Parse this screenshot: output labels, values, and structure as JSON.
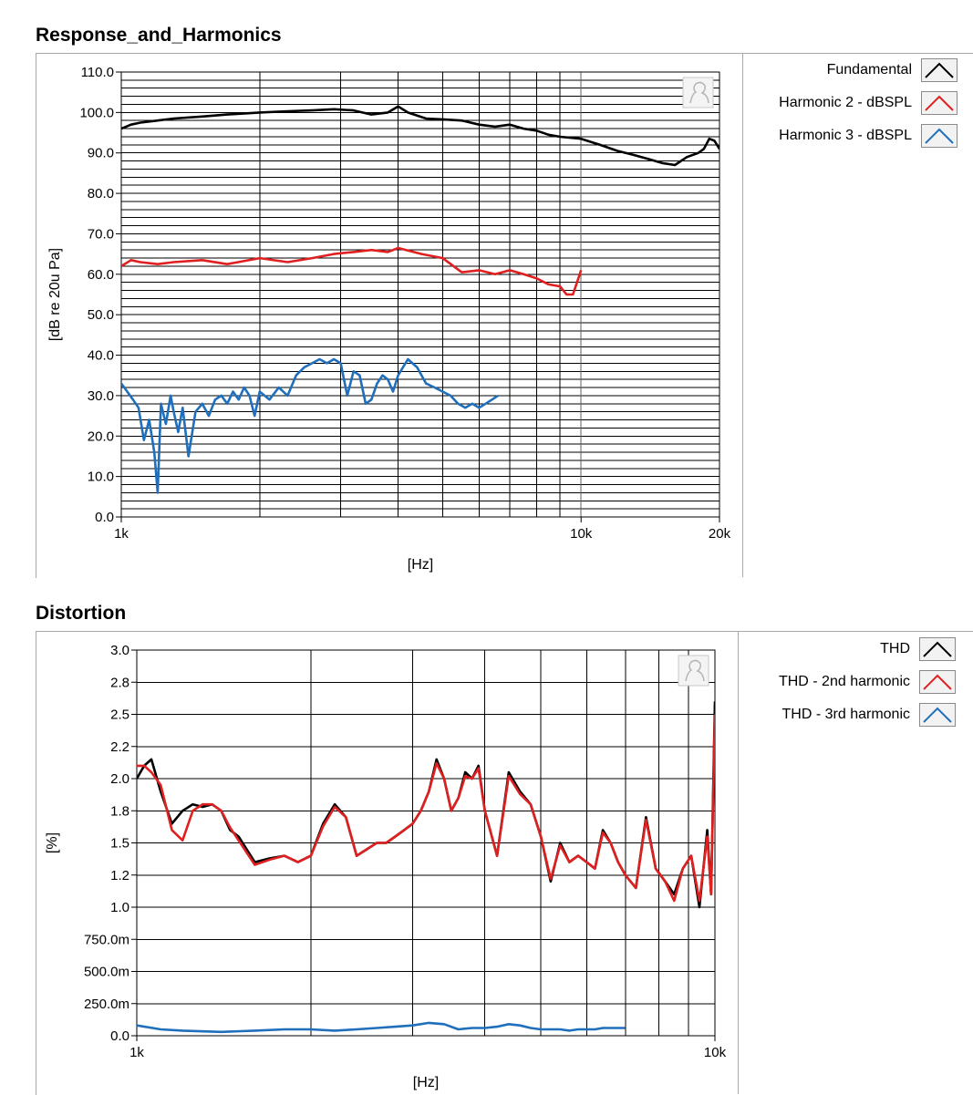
{
  "chart_data": [
    {
      "type": "line",
      "title": "Response_and_Harmonics",
      "xlabel": "[Hz]",
      "ylabel": "[dB re 20u Pa]",
      "xscale": "log",
      "xlim": [
        1000,
        20000
      ],
      "ylim": [
        0,
        110
      ],
      "grid": true,
      "legend": "right",
      "x_tick_labels": [
        {
          "v": 1000,
          "label": "1k"
        },
        {
          "v": 10000,
          "label": "10k"
        },
        {
          "v": 20000,
          "label": "20k"
        }
      ],
      "y_tick_labels": [
        "0.0",
        "10.0",
        "20.0",
        "30.0",
        "40.0",
        "50.0",
        "60.0",
        "70.0",
        "80.0",
        "90.0",
        "100.0",
        "110.0"
      ],
      "y_ticks": [
        0,
        10,
        20,
        30,
        40,
        50,
        60,
        70,
        80,
        90,
        100,
        110
      ],
      "series": [
        {
          "name": "Fundamental",
          "color": "#000000",
          "x": [
            1000,
            1050,
            1100,
            1200,
            1300,
            1500,
            1700,
            2000,
            2300,
            2600,
            2900,
            3200,
            3500,
            3800,
            4000,
            4200,
            4600,
            5000,
            5500,
            6000,
            6500,
            7000,
            7500,
            8000,
            8500,
            9000,
            10000,
            11000,
            12000,
            13000,
            14000,
            15000,
            16000,
            17000,
            18000,
            18500,
            19000,
            19500,
            20000
          ],
          "y": [
            96,
            97,
            97.5,
            98,
            98.5,
            99,
            99.5,
            100,
            100.3,
            100.5,
            100.8,
            100.5,
            99.5,
            100,
            101.5,
            100,
            98.5,
            98.3,
            98,
            97,
            96.5,
            97,
            96,
            95.5,
            94.5,
            94,
            93.5,
            92,
            90.5,
            89.5,
            88.5,
            87.5,
            87,
            89,
            90,
            91,
            93.5,
            93,
            91
          ]
        },
        {
          "name": "Harmonic 2 - dBSPL",
          "color": "#e02020",
          "x": [
            1000,
            1050,
            1100,
            1200,
            1300,
            1500,
            1700,
            2000,
            2300,
            2600,
            2900,
            3200,
            3500,
            3800,
            4000,
            4500,
            5000,
            5500,
            6000,
            6500,
            7000,
            7500,
            8000,
            8500,
            9000,
            9300,
            9600,
            10000
          ],
          "y": [
            62,
            63.5,
            63,
            62.5,
            63,
            63.5,
            62.5,
            64,
            63,
            64,
            65,
            65.5,
            66,
            65.5,
            66.5,
            65,
            64,
            60.5,
            61,
            60,
            61,
            60,
            59,
            57.5,
            57,
            55,
            55,
            61
          ]
        },
        {
          "name": "Harmonic 3 - dBSPL",
          "color": "#1f6fbd",
          "x": [
            1000,
            1030,
            1060,
            1090,
            1120,
            1150,
            1180,
            1200,
            1220,
            1250,
            1280,
            1300,
            1330,
            1360,
            1400,
            1450,
            1500,
            1550,
            1600,
            1650,
            1700,
            1750,
            1800,
            1850,
            1900,
            1950,
            2000,
            2100,
            2200,
            2300,
            2400,
            2500,
            2600,
            2700,
            2800,
            2900,
            3000,
            3100,
            3200,
            3300,
            3400,
            3500,
            3600,
            3700,
            3800,
            3900,
            4000,
            4200,
            4400,
            4600,
            4800,
            5000,
            5200,
            5400,
            5600,
            5800,
            6000,
            6200,
            6400,
            6600
          ],
          "y": [
            33,
            31,
            29,
            27,
            19,
            24,
            16,
            6,
            28,
            23,
            30,
            26,
            21,
            27,
            15,
            26,
            28,
            25,
            29,
            30,
            28,
            31,
            29,
            32,
            30,
            25,
            31,
            29,
            32,
            30,
            35,
            37,
            38,
            39,
            38,
            39,
            38,
            30,
            36,
            35,
            28,
            29,
            33,
            35,
            34,
            31,
            35,
            39,
            37,
            33,
            32,
            31,
            30,
            28,
            27,
            28,
            27,
            28,
            29,
            30
          ]
        }
      ]
    },
    {
      "type": "line",
      "title": "Distortion",
      "xlabel": "[Hz]",
      "ylabel": "[%]",
      "xscale": "log",
      "xlim": [
        1000,
        10000
      ],
      "ylim": [
        0,
        3.0
      ],
      "grid": true,
      "legend": "right",
      "x_tick_labels": [
        {
          "v": 1000,
          "label": "1k"
        },
        {
          "v": 10000,
          "label": "10k"
        }
      ],
      "y_tick_labels": [
        "0.0",
        "250.0m",
        "500.0m",
        "750.0m",
        "1.0",
        "1.2",
        "1.5",
        "1.8",
        "2.0",
        "2.2",
        "2.5",
        "2.8",
        "3.0"
      ],
      "y_ticks": [
        0,
        0.25,
        0.5,
        0.75,
        1.0,
        1.25,
        1.5,
        1.75,
        2.0,
        2.25,
        2.5,
        2.75,
        3.0
      ],
      "series": [
        {
          "name": "THD",
          "color": "#000000",
          "x": [
            1000,
            1030,
            1060,
            1100,
            1150,
            1200,
            1250,
            1300,
            1350,
            1400,
            1450,
            1500,
            1600,
            1700,
            1800,
            1900,
            2000,
            2100,
            2200,
            2300,
            2400,
            2500,
            2600,
            2700,
            2800,
            2900,
            3000,
            3100,
            3200,
            3300,
            3400,
            3500,
            3600,
            3700,
            3800,
            3900,
            4000,
            4200,
            4400,
            4600,
            4800,
            5000,
            5200,
            5400,
            5600,
            5800,
            6000,
            6200,
            6400,
            6600,
            6800,
            7000,
            7300,
            7600,
            7900,
            8200,
            8500,
            8800,
            9100,
            9400,
            9700,
            9850,
            10000
          ],
          "y": [
            2.0,
            2.1,
            2.15,
            1.9,
            1.65,
            1.75,
            1.8,
            1.78,
            1.8,
            1.75,
            1.6,
            1.55,
            1.35,
            1.38,
            1.4,
            1.35,
            1.4,
            1.65,
            1.8,
            1.7,
            1.4,
            1.45,
            1.5,
            1.5,
            1.55,
            1.6,
            1.65,
            1.75,
            1.9,
            2.15,
            2.0,
            1.75,
            1.85,
            2.05,
            2.0,
            2.1,
            1.75,
            1.4,
            2.05,
            1.9,
            1.8,
            1.55,
            1.2,
            1.5,
            1.35,
            1.4,
            1.35,
            1.3,
            1.6,
            1.5,
            1.35,
            1.25,
            1.15,
            1.7,
            1.3,
            1.2,
            1.1,
            1.3,
            1.4,
            1.0,
            1.6,
            1.1,
            2.6
          ]
        },
        {
          "name": "THD - 2nd harmonic",
          "color": "#e02020",
          "x": [
            1000,
            1030,
            1060,
            1100,
            1150,
            1200,
            1250,
            1300,
            1350,
            1400,
            1450,
            1500,
            1600,
            1700,
            1800,
            1900,
            2000,
            2100,
            2200,
            2300,
            2400,
            2500,
            2600,
            2700,
            2800,
            2900,
            3000,
            3100,
            3200,
            3300,
            3400,
            3500,
            3600,
            3700,
            3800,
            3900,
            4000,
            4200,
            4400,
            4600,
            4800,
            5000,
            5200,
            5400,
            5600,
            5800,
            6000,
            6200,
            6400,
            6600,
            6800,
            7000,
            7300,
            7600,
            7900,
            8200,
            8500,
            8800,
            9100,
            9400,
            9700,
            9850,
            10000
          ],
          "y": [
            2.1,
            2.1,
            2.05,
            1.95,
            1.6,
            1.52,
            1.75,
            1.8,
            1.8,
            1.75,
            1.62,
            1.52,
            1.33,
            1.37,
            1.4,
            1.35,
            1.4,
            1.63,
            1.78,
            1.7,
            1.4,
            1.45,
            1.5,
            1.5,
            1.55,
            1.6,
            1.65,
            1.75,
            1.9,
            2.12,
            2.0,
            1.75,
            1.85,
            2.02,
            2.0,
            2.08,
            1.75,
            1.4,
            2.02,
            1.88,
            1.8,
            1.55,
            1.22,
            1.48,
            1.35,
            1.4,
            1.35,
            1.3,
            1.58,
            1.5,
            1.35,
            1.25,
            1.15,
            1.68,
            1.3,
            1.2,
            1.05,
            1.3,
            1.4,
            1.05,
            1.55,
            1.1,
            2.5
          ]
        },
        {
          "name": "THD - 3rd harmonic",
          "color": "#1f6fbd",
          "x": [
            1000,
            1100,
            1200,
            1400,
            1600,
            1800,
            2000,
            2200,
            2400,
            2600,
            2800,
            3000,
            3200,
            3400,
            3600,
            3800,
            4000,
            4200,
            4400,
            4600,
            4800,
            5000,
            5200,
            5400,
            5600,
            5800,
            6000,
            6200,
            6400,
            6600,
            6800,
            7000
          ],
          "y": [
            0.08,
            0.05,
            0.04,
            0.03,
            0.04,
            0.05,
            0.05,
            0.04,
            0.05,
            0.06,
            0.07,
            0.08,
            0.1,
            0.09,
            0.05,
            0.06,
            0.06,
            0.07,
            0.09,
            0.08,
            0.06,
            0.05,
            0.05,
            0.05,
            0.04,
            0.05,
            0.05,
            0.05,
            0.06,
            0.06,
            0.06,
            0.06
          ]
        }
      ]
    }
  ]
}
